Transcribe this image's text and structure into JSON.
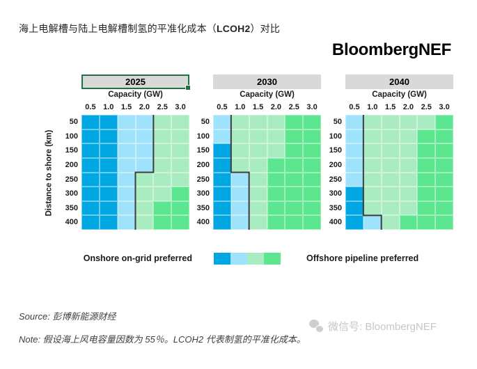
{
  "title": {
    "prefix": "海上电解槽与陆上电解槽制氢的平准化成本（",
    "highlight": "LCOH2",
    "suffix": "）对比"
  },
  "logo": "BloombergNEF",
  "colors": {
    "dark_blue": "#00A7E2",
    "light_blue": "#9EE2FB",
    "light_green": "#A9ECC1",
    "green": "#5CE690",
    "boundary_line": "#3A3A3A",
    "header_bg": "#D9D9D9",
    "selected_border": "#1F7246"
  },
  "legend": {
    "left_label": "Onshore on-grid preferred",
    "right_label": "Offshore pipeline preferred",
    "swatches": [
      "db",
      "lb",
      "lg",
      "g"
    ]
  },
  "source": "Source: 彭博新能源财经",
  "note": "Note: 假设海上风电容量因数为 55％。LCOH2 代表制氢的平准化成本。",
  "watermark": "微信号: BloombergNEF",
  "chart_data": {
    "type": "heatmap",
    "title": "海上电解槽与陆上电解槽制氢的平准化成本（LCOH2）对比",
    "x_label": "Capacity (GW)",
    "x_ticks": [
      "0.5",
      "1.0",
      "1.5",
      "2.0",
      "2.5",
      "3.0"
    ],
    "y_label": "Distance to shore (km)",
    "y_ticks": [
      "50",
      "100",
      "150",
      "200",
      "250",
      "300",
      "350",
      "400"
    ],
    "value_scale": {
      "order": [
        "db",
        "lb",
        "lg",
        "g"
      ],
      "low_end_meaning": "Onshore on-grid preferred",
      "high_end_meaning": "Offshore pipeline preferred"
    },
    "panels": [
      {
        "year": "2025",
        "selected": true,
        "cells": [
          [
            "db",
            "db",
            "lb",
            "lb",
            "lg",
            "lg"
          ],
          [
            "db",
            "db",
            "lb",
            "lb",
            "lg",
            "lg"
          ],
          [
            "db",
            "db",
            "lb",
            "lb",
            "lg",
            "lg"
          ],
          [
            "db",
            "db",
            "lb",
            "lb",
            "lg",
            "lg"
          ],
          [
            "db",
            "db",
            "lb",
            "lg",
            "lg",
            "lg"
          ],
          [
            "db",
            "db",
            "lb",
            "lg",
            "lg",
            "g"
          ],
          [
            "db",
            "db",
            "lb",
            "lg",
            "g",
            "g"
          ],
          [
            "db",
            "db",
            "lb",
            "lg",
            "g",
            "g"
          ]
        ],
        "onshore_cols_per_row": [
          4,
          4,
          4,
          4,
          3,
          3,
          3,
          3
        ]
      },
      {
        "year": "2030",
        "selected": false,
        "cells": [
          [
            "lb",
            "lg",
            "lg",
            "lg",
            "g",
            "g"
          ],
          [
            "lb",
            "lg",
            "lg",
            "lg",
            "g",
            "g"
          ],
          [
            "db",
            "lg",
            "lg",
            "lg",
            "g",
            "g"
          ],
          [
            "db",
            "lg",
            "lg",
            "g",
            "g",
            "g"
          ],
          [
            "db",
            "lb",
            "lg",
            "g",
            "g",
            "g"
          ],
          [
            "db",
            "lb",
            "lg",
            "g",
            "g",
            "g"
          ],
          [
            "db",
            "lb",
            "lg",
            "g",
            "g",
            "g"
          ],
          [
            "db",
            "lb",
            "lg",
            "g",
            "g",
            "g"
          ]
        ],
        "onshore_cols_per_row": [
          1,
          1,
          1,
          1,
          2,
          2,
          2,
          2
        ]
      },
      {
        "year": "2040",
        "selected": false,
        "cells": [
          [
            "lb",
            "lg",
            "lg",
            "lg",
            "lg",
            "g"
          ],
          [
            "lb",
            "lg",
            "lg",
            "lg",
            "g",
            "g"
          ],
          [
            "lb",
            "lg",
            "lg",
            "lg",
            "g",
            "g"
          ],
          [
            "lb",
            "lg",
            "lg",
            "lg",
            "g",
            "g"
          ],
          [
            "lb",
            "lg",
            "lg",
            "lg",
            "g",
            "g"
          ],
          [
            "db",
            "lg",
            "lg",
            "lg",
            "g",
            "g"
          ],
          [
            "db",
            "lg",
            "lg",
            "lg",
            "g",
            "g"
          ],
          [
            "db",
            "lb",
            "lg",
            "g",
            "g",
            "g"
          ]
        ],
        "onshore_cols_per_row": [
          1,
          1,
          1,
          1,
          1,
          1,
          1,
          2
        ]
      }
    ]
  }
}
